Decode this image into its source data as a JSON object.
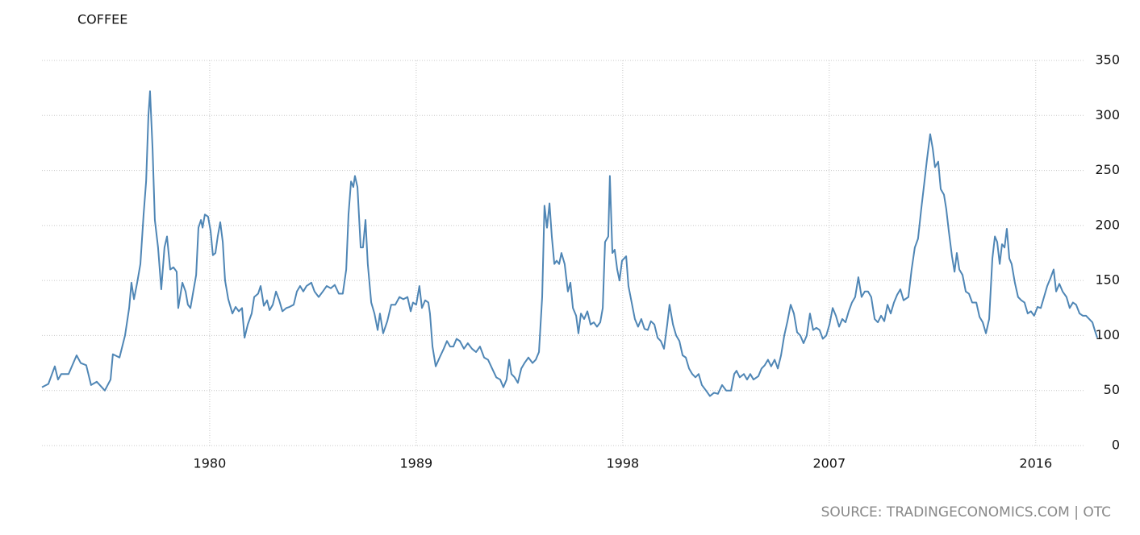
{
  "chart_data": {
    "type": "line",
    "title": "COFFEE",
    "source": "SOURCE: TRADINGECONOMICS.COM | OTC",
    "color": "#4f86b5",
    "grid": true,
    "xlim": [
      1972.69,
      2018.68
    ],
    "xticks": [
      1980,
      1989,
      1998,
      2007,
      2016
    ],
    "ylim": [
      0,
      350
    ],
    "yticks": [
      0,
      50,
      100,
      150,
      200,
      250,
      300,
      350
    ],
    "x": [
      1972.69,
      1972.97,
      1973.25,
      1973.39,
      1973.53,
      1973.85,
      1974.2,
      1974.38,
      1974.62,
      1974.83,
      1975.08,
      1975.43,
      1975.68,
      1975.78,
      1976.07,
      1976.31,
      1976.49,
      1976.59,
      1976.7,
      1976.84,
      1976.98,
      1977.12,
      1977.23,
      1977.33,
      1977.4,
      1977.51,
      1977.61,
      1977.75,
      1977.89,
      1978.03,
      1978.14,
      1978.28,
      1978.42,
      1978.56,
      1978.63,
      1978.81,
      1978.95,
      1979.05,
      1979.16,
      1979.41,
      1979.51,
      1979.62,
      1979.69,
      1979.79,
      1979.93,
      1980.04,
      1980.14,
      1980.25,
      1980.35,
      1980.46,
      1980.57,
      1980.67,
      1980.81,
      1980.99,
      1981.13,
      1981.27,
      1981.41,
      1981.52,
      1981.66,
      1981.83,
      1981.94,
      1982.11,
      1982.22,
      1982.36,
      1982.5,
      1982.61,
      1982.75,
      1982.89,
      1983.03,
      1983.17,
      1983.34,
      1983.48,
      1983.66,
      1983.8,
      1983.94,
      1984.08,
      1984.22,
      1984.43,
      1984.57,
      1984.75,
      1984.93,
      1985.1,
      1985.28,
      1985.45,
      1985.63,
      1985.8,
      1985.95,
      1986.05,
      1986.16,
      1986.26,
      1986.33,
      1986.44,
      1986.58,
      1986.68,
      1986.79,
      1986.89,
      1987.04,
      1987.18,
      1987.32,
      1987.42,
      1987.56,
      1987.74,
      1987.91,
      1988.09,
      1988.27,
      1988.44,
      1988.62,
      1988.76,
      1988.86,
      1989.0,
      1989.14,
      1989.25,
      1989.39,
      1989.53,
      1989.6,
      1989.71,
      1989.85,
      1990.02,
      1990.2,
      1990.34,
      1990.48,
      1990.62,
      1990.76,
      1990.9,
      1991.08,
      1991.25,
      1991.43,
      1991.61,
      1991.78,
      1991.96,
      1992.13,
      1992.31,
      1992.49,
      1992.66,
      1992.8,
      1992.94,
      1993.05,
      1993.15,
      1993.29,
      1993.43,
      1993.58,
      1993.72,
      1993.89,
      1994.07,
      1994.21,
      1994.35,
      1994.49,
      1994.59,
      1994.7,
      1994.81,
      1994.91,
      1995.02,
      1995.12,
      1995.23,
      1995.33,
      1995.47,
      1995.61,
      1995.72,
      1995.83,
      1995.97,
      1996.07,
      1996.18,
      1996.32,
      1996.46,
      1996.6,
      1996.74,
      1996.88,
      1997.02,
      1997.13,
      1997.23,
      1997.37,
      1997.44,
      1997.55,
      1997.65,
      1997.76,
      1997.86,
      1997.97,
      1998.15,
      1998.25,
      1998.39,
      1998.53,
      1998.67,
      1998.81,
      1998.95,
      1999.09,
      1999.23,
      1999.38,
      1999.52,
      1999.66,
      1999.8,
      1999.94,
      2000.04,
      2000.19,
      2000.33,
      2000.47,
      2000.61,
      2000.75,
      2000.89,
      2001.03,
      2001.17,
      2001.31,
      2001.45,
      2001.63,
      2001.8,
      2001.98,
      2002.15,
      2002.33,
      2002.51,
      2002.72,
      2002.86,
      2002.96,
      2003.1,
      2003.28,
      2003.42,
      2003.56,
      2003.7,
      2003.91,
      2004.05,
      2004.19,
      2004.33,
      2004.47,
      2004.62,
      2004.76,
      2004.9,
      2005.04,
      2005.18,
      2005.32,
      2005.46,
      2005.6,
      2005.74,
      2005.88,
      2006.02,
      2006.16,
      2006.3,
      2006.44,
      2006.58,
      2006.72,
      2006.87,
      2007.01,
      2007.15,
      2007.29,
      2007.43,
      2007.57,
      2007.71,
      2007.85,
      2007.99,
      2008.13,
      2008.27,
      2008.41,
      2008.55,
      2008.69,
      2008.83,
      2008.98,
      2009.12,
      2009.26,
      2009.4,
      2009.54,
      2009.68,
      2009.82,
      2009.96,
      2010.1,
      2010.24,
      2010.45,
      2010.59,
      2010.73,
      2010.87,
      2011.01,
      2011.15,
      2011.26,
      2011.4,
      2011.51,
      2011.61,
      2011.75,
      2011.86,
      2012.0,
      2012.1,
      2012.21,
      2012.35,
      2012.46,
      2012.56,
      2012.67,
      2012.81,
      2012.95,
      2013.09,
      2013.23,
      2013.41,
      2013.55,
      2013.69,
      2013.83,
      2013.97,
      2014.11,
      2014.22,
      2014.32,
      2014.43,
      2014.53,
      2014.64,
      2014.74,
      2014.85,
      2014.95,
      2015.09,
      2015.23,
      2015.37,
      2015.51,
      2015.65,
      2015.79,
      2015.93,
      2016.08,
      2016.22,
      2016.36,
      2016.5,
      2016.64,
      2016.78,
      2016.89,
      2017.03,
      2017.17,
      2017.34,
      2017.48,
      2017.62,
      2017.76,
      2017.91,
      2018.05,
      2018.19,
      2018.33,
      2018.47,
      2018.57,
      2018.68
    ],
    "values": [
      53,
      56,
      72,
      60,
      65,
      65,
      82,
      75,
      73,
      55,
      58,
      50,
      60,
      83,
      80,
      100,
      125,
      148,
      133,
      148,
      165,
      210,
      240,
      300,
      322,
      270,
      205,
      180,
      142,
      180,
      190,
      160,
      162,
      158,
      125,
      148,
      140,
      128,
      125,
      155,
      198,
      205,
      198,
      210,
      208,
      195,
      173,
      175,
      190,
      203,
      185,
      150,
      133,
      120,
      126,
      122,
      125,
      98,
      110,
      120,
      135,
      138,
      145,
      127,
      132,
      123,
      128,
      140,
      132,
      122,
      125,
      126,
      128,
      140,
      145,
      140,
      145,
      148,
      140,
      135,
      140,
      145,
      143,
      146,
      138,
      138,
      160,
      210,
      240,
      235,
      245,
      235,
      180,
      180,
      205,
      165,
      130,
      120,
      105,
      120,
      102,
      113,
      128,
      128,
      135,
      133,
      135,
      122,
      130,
      128,
      145,
      125,
      132,
      130,
      120,
      90,
      72,
      80,
      88,
      95,
      90,
      90,
      97,
      95,
      88,
      93,
      88,
      85,
      90,
      80,
      78,
      70,
      62,
      60,
      53,
      60,
      78,
      65,
      62,
      57,
      70,
      75,
      80,
      75,
      78,
      85,
      135,
      218,
      198,
      220,
      190,
      165,
      168,
      165,
      175,
      165,
      140,
      148,
      125,
      118,
      102,
      120,
      115,
      122,
      110,
      112,
      108,
      112,
      125,
      185,
      190,
      245,
      175,
      178,
      160,
      150,
      168,
      172,
      145,
      130,
      115,
      108,
      115,
      106,
      105,
      113,
      110,
      98,
      95,
      88,
      110,
      128,
      110,
      100,
      95,
      82,
      80,
      70,
      65,
      62,
      65,
      55,
      50,
      45,
      48,
      47,
      55,
      50,
      50,
      65,
      68,
      62,
      65,
      60,
      65,
      60,
      63,
      70,
      73,
      78,
      72,
      78,
      70,
      82,
      100,
      113,
      128,
      120,
      103,
      100,
      93,
      100,
      120,
      105,
      107,
      105,
      97,
      100,
      110,
      125,
      118,
      108,
      115,
      112,
      122,
      130,
      135,
      153,
      135,
      140,
      140,
      135,
      115,
      112,
      118,
      113,
      128,
      120,
      130,
      137,
      142,
      132,
      135,
      160,
      180,
      188,
      215,
      240,
      260,
      283,
      270,
      253,
      258,
      233,
      228,
      215,
      195,
      172,
      158,
      175,
      160,
      155,
      140,
      138,
      130,
      130,
      117,
      112,
      102,
      115,
      170,
      190,
      185,
      165,
      183,
      180,
      197,
      170,
      165,
      148,
      135,
      132,
      130,
      120,
      122,
      118,
      126,
      125,
      135,
      145,
      152,
      160,
      140,
      147,
      140,
      135,
      125,
      130,
      128,
      120,
      118,
      118,
      115,
      112,
      105,
      98
    ]
  }
}
